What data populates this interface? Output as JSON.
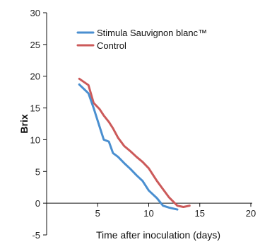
{
  "chart_data": {
    "type": "line",
    "title": "",
    "xlabel": "Time after inoculation (days)",
    "ylabel": "Brix",
    "xlim": [
      0,
      20
    ],
    "ylim": [
      -5,
      30
    ],
    "xticks": [
      {
        "value": 5,
        "label": "5"
      },
      {
        "value": 10,
        "label": "10"
      },
      {
        "value": 15,
        "label": "15"
      },
      {
        "value": 20,
        "label": "20"
      }
    ],
    "yticks": [
      {
        "value": -5,
        "label": "-5"
      },
      {
        "value": 0,
        "label": "0"
      },
      {
        "value": 5,
        "label": "5"
      },
      {
        "value": 10,
        "label": "10"
      },
      {
        "value": 15,
        "label": "15"
      },
      {
        "value": 20,
        "label": "20"
      },
      {
        "value": 25,
        "label": "25"
      },
      {
        "value": 30,
        "label": "30"
      }
    ],
    "grid": false,
    "legend_position": "top-center",
    "series": [
      {
        "name": "Stimula Sauvignon blanc™",
        "color": "#4a8fd0",
        "points": [
          [
            3.2,
            18.7
          ],
          [
            4.1,
            17.3
          ],
          [
            4.6,
            15.0
          ],
          [
            5.2,
            12.0
          ],
          [
            5.6,
            10.0
          ],
          [
            6.1,
            9.7
          ],
          [
            6.5,
            7.9
          ],
          [
            7.0,
            7.3
          ],
          [
            7.6,
            6.3
          ],
          [
            8.2,
            5.4
          ],
          [
            8.8,
            4.4
          ],
          [
            9.4,
            3.5
          ],
          [
            10.0,
            2.0
          ],
          [
            10.8,
            0.8
          ],
          [
            11.4,
            -0.4
          ],
          [
            12.0,
            -0.7
          ],
          [
            12.8,
            -1.0
          ]
        ]
      },
      {
        "name": "Control",
        "color": "#cc5a5a",
        "points": [
          [
            3.2,
            19.6
          ],
          [
            4.1,
            18.6
          ],
          [
            4.6,
            15.8
          ],
          [
            5.2,
            14.8
          ],
          [
            5.6,
            13.8
          ],
          [
            6.1,
            12.8
          ],
          [
            6.5,
            11.8
          ],
          [
            7.0,
            10.3
          ],
          [
            7.6,
            9.0
          ],
          [
            8.2,
            8.2
          ],
          [
            8.8,
            7.3
          ],
          [
            9.4,
            6.5
          ],
          [
            10.0,
            5.5
          ],
          [
            10.8,
            3.5
          ],
          [
            11.4,
            2.2
          ],
          [
            12.0,
            0.9
          ],
          [
            12.8,
            -0.4
          ],
          [
            13.4,
            -0.6
          ],
          [
            14.0,
            -0.4
          ]
        ]
      }
    ]
  }
}
